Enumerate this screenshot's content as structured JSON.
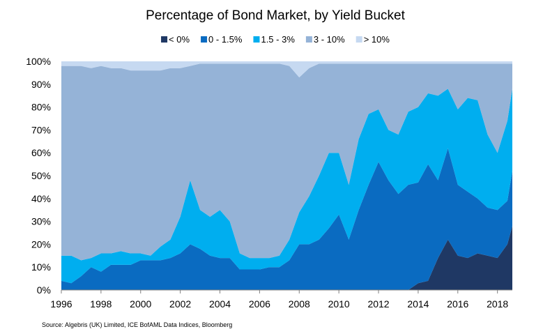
{
  "chart_data": {
    "type": "area",
    "stacked": true,
    "title": "Percentage of Bond Market, by Yield Bucket",
    "source": "Source: Algebris (UK) Limited, ICE BofAML Data Indices, Bloomberg",
    "xlabel": "",
    "ylabel": "",
    "xlim": [
      1996,
      2018.75
    ],
    "ylim": [
      0,
      100
    ],
    "x_ticks": [
      1996,
      1998,
      2000,
      2002,
      2004,
      2006,
      2008,
      2010,
      2012,
      2014,
      2016,
      2018
    ],
    "x_tick_labels": [
      "1996",
      "1998",
      "2000",
      "2002",
      "2004",
      "2006",
      "2008",
      "2010",
      "2012",
      "2014",
      "2016",
      "2018"
    ],
    "y_ticks": [
      0,
      10,
      20,
      30,
      40,
      50,
      60,
      70,
      80,
      90,
      100
    ],
    "y_tick_labels": [
      "0%",
      "10%",
      "20%",
      "30%",
      "40%",
      "50%",
      "60%",
      "70%",
      "80%",
      "90%",
      "100%"
    ],
    "grid": false,
    "legend_position": "top-center",
    "x": [
      1996,
      1996.5,
      1997,
      1997.5,
      1998,
      1998.5,
      1999,
      1999.5,
      2000,
      2000.5,
      2001,
      2001.5,
      2002,
      2002.5,
      2003,
      2003.5,
      2004,
      2004.5,
      2005,
      2005.5,
      2006,
      2006.5,
      2007,
      2007.5,
      2008,
      2008.5,
      2009,
      2009.5,
      2010,
      2010.5,
      2011,
      2011.5,
      2012,
      2012.5,
      2013,
      2013.5,
      2014,
      2014.5,
      2015,
      2015.5,
      2016,
      2016.5,
      2017,
      2017.5,
      2018,
      2018.5,
      2018.75
    ],
    "series": [
      {
        "name": "< 0%",
        "color": "#1f3864",
        "cumulative": [
          0,
          0,
          0,
          0,
          0,
          0,
          0,
          0,
          0,
          0,
          0,
          0,
          0,
          0,
          0,
          0,
          0,
          0,
          0,
          0,
          0,
          0,
          0,
          0,
          0,
          0,
          0,
          0,
          0,
          0,
          0,
          0,
          0,
          0,
          0,
          0,
          3,
          4,
          14,
          22,
          15,
          14,
          16,
          15,
          14,
          20,
          28
        ]
      },
      {
        "name": "0 - 1.5%",
        "color": "#0a6bc1",
        "cumulative": [
          4,
          3,
          6,
          10,
          8,
          11,
          11,
          11,
          13,
          13,
          13,
          14,
          16,
          20,
          18,
          15,
          14,
          14,
          9,
          9,
          9,
          10,
          10,
          13,
          20,
          20,
          22,
          27,
          33,
          22,
          35,
          46,
          56,
          48,
          42,
          46,
          47,
          55,
          48,
          62,
          46,
          43,
          40,
          36,
          35,
          39,
          52
        ]
      },
      {
        "name": "1.5 - 3%",
        "color": "#00aeef",
        "cumulative": [
          15,
          15,
          13,
          14,
          16,
          16,
          17,
          16,
          16,
          15,
          19,
          22,
          32,
          48,
          35,
          32,
          35,
          30,
          16,
          14,
          14,
          14,
          15,
          22,
          34,
          41,
          50,
          60,
          60,
          46,
          66,
          77,
          79,
          70,
          68,
          78,
          80,
          86,
          85,
          88,
          79,
          84,
          83,
          68,
          60,
          74,
          88
        ]
      },
      {
        "name": "3 - 10%",
        "color": "#95b3d7",
        "cumulative": [
          98,
          98,
          98,
          97,
          98,
          97,
          97,
          96,
          96,
          96,
          96,
          97,
          97,
          98,
          99,
          99,
          99,
          99,
          99,
          99,
          99,
          99,
          99,
          98,
          93,
          97,
          99,
          99,
          99,
          99,
          99,
          99,
          99,
          99,
          99,
          99,
          99,
          99,
          99,
          99,
          99,
          99,
          99,
          99,
          99,
          99,
          99
        ]
      },
      {
        "name": "> 10%",
        "color": "#c6d9f1",
        "cumulative": [
          100,
          100,
          100,
          100,
          100,
          100,
          100,
          100,
          100,
          100,
          100,
          100,
          100,
          100,
          100,
          100,
          100,
          100,
          100,
          100,
          100,
          100,
          100,
          100,
          100,
          100,
          100,
          100,
          100,
          100,
          100,
          100,
          100,
          100,
          100,
          100,
          100,
          100,
          100,
          100,
          100,
          100,
          100,
          100,
          100,
          100,
          100
        ]
      }
    ]
  }
}
